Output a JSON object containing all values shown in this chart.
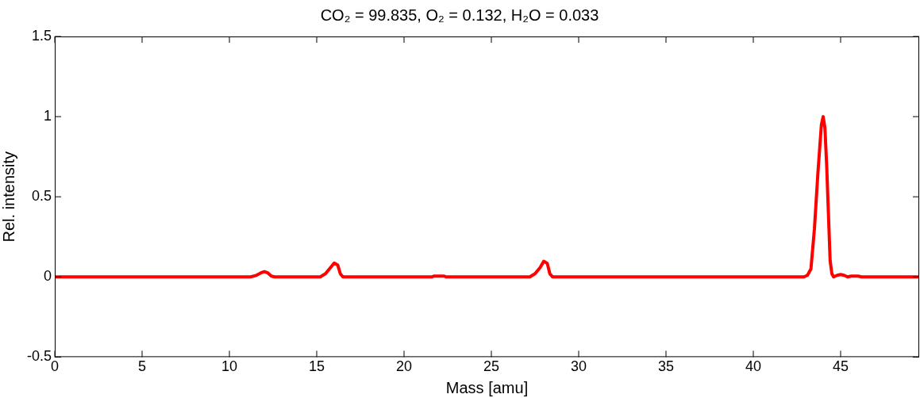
{
  "chart_data": {
    "type": "line",
    "title": "CO₂ = 99.835, O₂ = 0.132, H₂O = 0.033",
    "xlabel": "Mass [amu]",
    "ylabel": "Rel. intensity",
    "series": [
      {
        "color": "#ff0000",
        "x": [
          0,
          11.2,
          11.5,
          11.8,
          12.0,
          12.2,
          12.4,
          12.6,
          15.2,
          15.5,
          15.8,
          16.0,
          16.2,
          16.35,
          16.5,
          21.6,
          21.7,
          22.3,
          22.4,
          27.2,
          27.5,
          27.8,
          28.0,
          28.2,
          28.35,
          28.5,
          42.9,
          43.1,
          43.3,
          43.5,
          43.7,
          43.9,
          44.0,
          44.1,
          44.2,
          44.3,
          44.4,
          44.5,
          44.6,
          44.8,
          45.0,
          45.2,
          45.4,
          45.6,
          46.0,
          46.2,
          49.5
        ],
        "values": [
          0,
          0,
          0.008,
          0.025,
          0.033,
          0.025,
          0.005,
          0,
          0,
          0.02,
          0.06,
          0.087,
          0.075,
          0.02,
          0,
          0,
          0.005,
          0.005,
          0,
          0,
          0.02,
          0.06,
          0.098,
          0.085,
          0.02,
          0,
          0,
          0.01,
          0.05,
          0.3,
          0.65,
          0.95,
          1.0,
          0.93,
          0.7,
          0.4,
          0.1,
          0.02,
          0,
          0.01,
          0.015,
          0.01,
          0,
          0.005,
          0.005,
          0,
          0
        ]
      }
    ],
    "xlim": [
      0,
      49.5
    ],
    "xticks": [
      0,
      5,
      10,
      15,
      20,
      25,
      30,
      35,
      40,
      45
    ],
    "ylim": [
      -0.5,
      1.5
    ],
    "yticks": [
      -0.5,
      0,
      0.5,
      1,
      1.5
    ],
    "grid": false,
    "legend": false,
    "marker": "none",
    "line_style": "solid"
  }
}
